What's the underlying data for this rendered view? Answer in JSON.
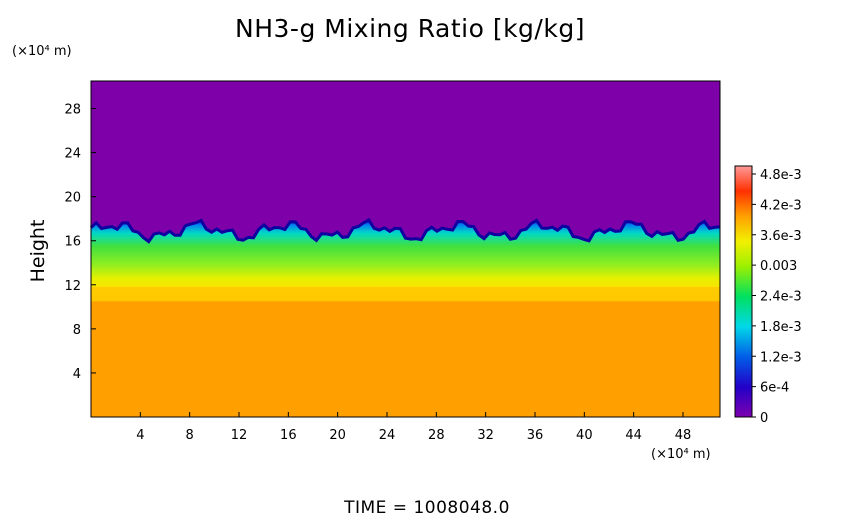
{
  "chart_data": {
    "type": "heatmap",
    "title": "NH3-g Mixing Ratio [kg/kg]",
    "xlabel": "",
    "ylabel": "Height",
    "x_unit_label": "(×10⁴ m)",
    "y_unit_label": "(×10⁴ m)",
    "xlim": [
      0,
      51
    ],
    "ylim": [
      0,
      30.5
    ],
    "x_ticks": [
      "4",
      "8",
      "12",
      "16",
      "20",
      "24",
      "28",
      "32",
      "36",
      "40",
      "44",
      "48"
    ],
    "y_ticks": [
      "4",
      "8",
      "12",
      "16",
      "20",
      "24",
      "28"
    ],
    "colorbar": {
      "ticks": [
        "0",
        "6e-4",
        "1.2e-3",
        "1.8e-3",
        "2.4e-3",
        "0.003",
        "3.6e-3",
        "4.2e-3",
        "4.8e-3"
      ],
      "range": [
        0,
        0.005
      ]
    },
    "field_summary": {
      "upper_region": {
        "height_range": [
          18,
          30.5
        ],
        "value": 0
      },
      "transition_top_height": 17.5,
      "cloud_band": {
        "height_range": [
          12,
          17.5
        ],
        "value_range": [
          0.0015,
          0.0036
        ]
      },
      "lower_region": {
        "height_range": [
          0,
          10
        ],
        "value": 0.0039
      }
    },
    "footer": "TIME  =  1008048.0"
  }
}
